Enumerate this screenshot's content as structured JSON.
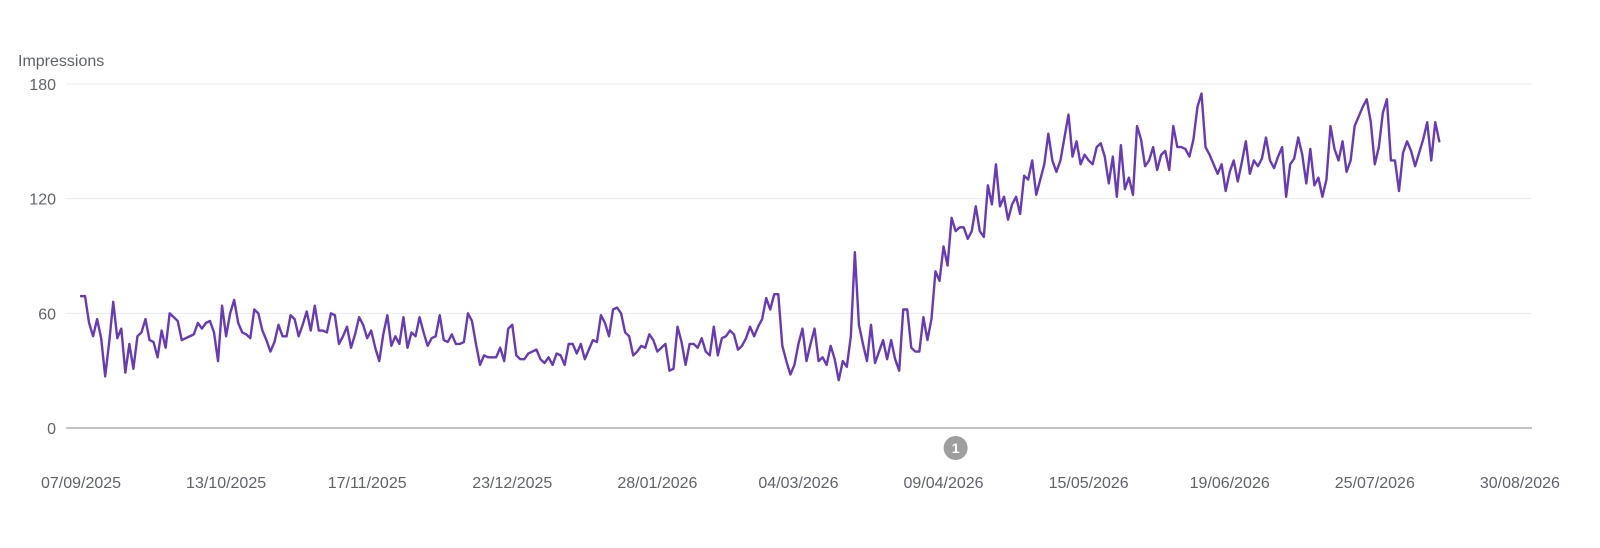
{
  "chart_data": {
    "type": "line",
    "ylabel": "Impressions",
    "ylim": [
      0,
      180
    ],
    "yticks": [
      0,
      60,
      120,
      180
    ],
    "x_start": "07/09/2025",
    "x_end": "02/09/2026",
    "xticks": [
      "07/09/2025",
      "13/10/2025",
      "17/11/2025",
      "23/12/2025",
      "28/01/2026",
      "04/03/2026",
      "09/04/2026",
      "15/05/2026",
      "19/06/2026",
      "25/07/2026",
      "30/08/2026"
    ],
    "grid": true,
    "line_color": "#673ab7",
    "annotations": [
      {
        "label": "1",
        "date": "12/04/2026"
      }
    ],
    "series": [
      {
        "values": [
          69,
          69,
          55,
          48,
          57,
          47,
          27,
          45,
          66,
          47,
          52,
          29,
          44,
          31,
          48,
          50,
          57,
          46,
          45,
          37,
          51,
          42,
          60,
          58,
          56,
          46,
          47,
          48,
          49,
          55,
          52,
          55,
          56,
          50,
          35,
          64,
          48,
          60,
          67,
          55,
          50,
          49,
          47,
          62,
          60,
          51,
          46,
          40,
          45,
          54,
          48,
          48,
          59,
          57,
          48,
          54,
          61,
          51,
          64,
          51,
          51,
          50,
          60,
          59,
          44,
          48,
          53,
          42,
          49,
          58,
          54,
          47,
          51,
          42,
          35,
          49,
          59,
          43,
          48,
          44,
          58,
          42,
          50,
          48,
          58,
          50,
          43,
          47,
          48,
          59,
          46,
          45,
          49,
          44,
          44,
          45,
          60,
          56,
          44,
          33,
          38,
          37,
          37,
          37,
          42,
          35,
          52,
          54,
          38,
          36,
          36,
          39,
          40,
          41,
          36,
          34,
          37,
          33,
          39,
          38,
          33,
          44,
          44,
          39,
          44,
          36,
          41,
          46,
          45,
          59,
          55,
          48,
          62,
          63,
          60,
          50,
          48,
          38,
          40,
          43,
          42,
          49,
          46,
          40,
          42,
          44,
          30,
          31,
          53,
          45,
          33,
          44,
          44,
          42,
          47,
          40,
          38,
          53,
          38,
          47,
          48,
          51,
          49,
          41,
          43,
          47,
          53,
          48,
          53,
          57,
          68,
          62,
          70,
          70,
          43,
          35,
          28,
          33,
          44,
          52,
          35,
          44,
          52,
          35,
          37,
          33,
          43,
          36,
          25,
          35,
          32,
          48,
          92,
          54,
          44,
          35,
          54,
          34,
          40,
          46,
          36,
          46,
          36,
          30,
          62,
          62,
          42,
          40,
          40,
          58,
          46,
          57,
          82,
          77,
          95,
          85,
          110,
          103,
          105,
          105,
          99,
          103,
          116,
          103,
          100,
          127,
          117,
          138,
          116,
          121,
          109,
          117,
          121,
          112,
          132,
          130,
          140,
          122,
          130,
          138,
          154,
          140,
          134,
          140,
          152,
          164,
          142,
          150,
          138,
          143,
          140,
          138,
          147,
          149,
          142,
          128,
          142,
          121,
          148,
          125,
          131,
          122,
          158,
          151,
          137,
          140,
          147,
          135,
          143,
          145,
          135,
          158,
          147,
          147,
          146,
          142,
          151,
          168,
          175,
          147,
          143,
          138,
          133,
          138,
          124,
          134,
          140,
          129,
          139,
          150,
          133,
          140,
          137,
          141,
          152,
          140,
          136,
          142,
          147,
          121,
          138,
          141,
          152,
          143,
          128,
          146,
          127,
          131,
          121,
          130,
          158,
          146,
          140,
          150,
          134,
          140,
          158,
          163,
          168,
          172,
          160,
          138,
          147,
          165,
          172,
          140,
          140,
          124,
          144,
          150,
          145,
          137,
          144,
          151,
          160,
          140,
          160,
          150
        ]
      }
    ]
  }
}
